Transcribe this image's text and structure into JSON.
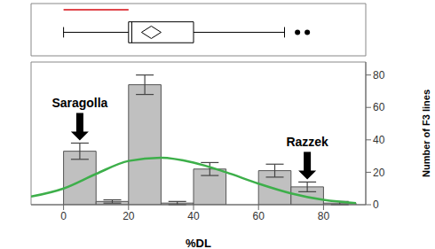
{
  "chart_data": {
    "type": "histogram",
    "bins": [
      0,
      10,
      20,
      30,
      40,
      50,
      60,
      70,
      80,
      90
    ],
    "counts": [
      33,
      2,
      74,
      1,
      22,
      0,
      21,
      11,
      1
    ],
    "errors": [
      5,
      1,
      6,
      1,
      4,
      0,
      4,
      3,
      1
    ],
    "color": "#c0c0c0",
    "xlabel": "%DL",
    "ylabel": "Number of F3 lines",
    "xlim": [
      -10,
      93
    ],
    "xticks": [
      0,
      20,
      40,
      60,
      80
    ],
    "ylim": [
      0,
      88
    ],
    "yticks": [
      0,
      20,
      40,
      60,
      80
    ],
    "grid": false,
    "fit_curve": {
      "color": "#3daf4a",
      "x": [
        -10,
        0,
        10,
        20,
        30,
        40,
        50,
        60,
        70,
        80,
        90
      ],
      "values": [
        5,
        10,
        19,
        27,
        29,
        26,
        20,
        13,
        7,
        3,
        1
      ]
    },
    "box_plot": {
      "min": 0,
      "q1": 20,
      "median": 21,
      "q3": 40,
      "max": 68,
      "mean": 27,
      "outliers": [
        72,
        75
      ],
      "shortest_half": [
        0,
        20
      ]
    },
    "annotations": [
      {
        "text": "Saragolla",
        "x": 5
      },
      {
        "text": "Razzek",
        "x": 75
      }
    ]
  }
}
